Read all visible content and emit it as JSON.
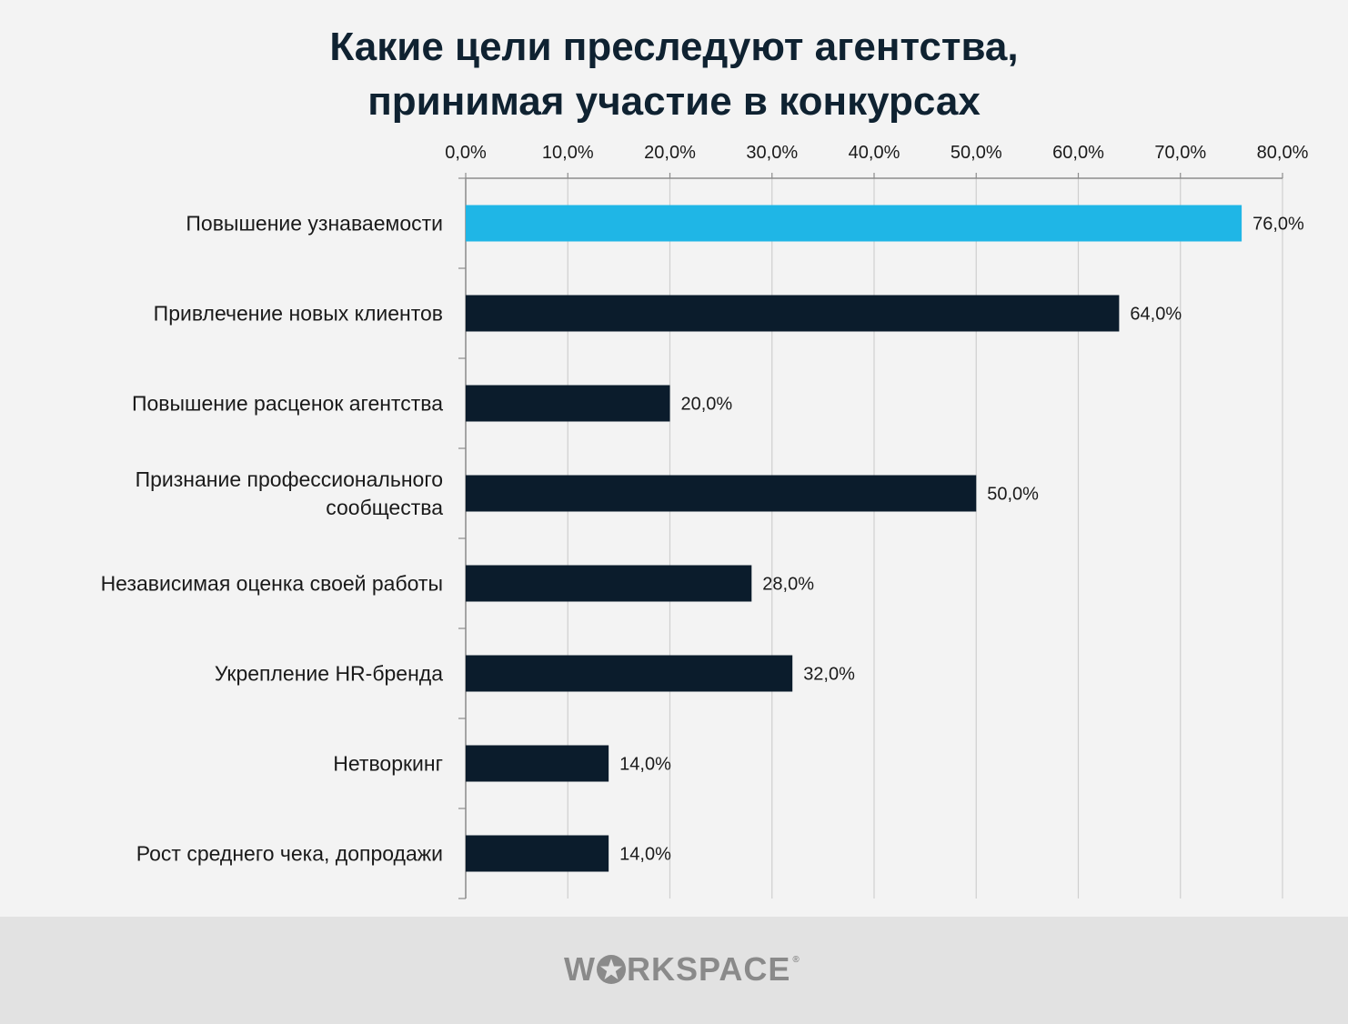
{
  "chart_data": {
    "type": "bar",
    "orientation": "horizontal",
    "title_lines": [
      "Какие цели преследуют агентства,",
      "принимая участие в конкурсах"
    ],
    "categories": [
      "Повышение узнаваемости",
      "Привлечение новых клиентов",
      "Повышение расценок агентства",
      "Признание  профессионального сообщества",
      "Независимая оценка своей работы",
      "Укрепление HR-бренда",
      "Нетворкинг",
      "Рост среднего чека, допродажи"
    ],
    "category_lines": [
      [
        "Повышение узнаваемости"
      ],
      [
        "Привлечение новых клиентов"
      ],
      [
        "Повышение расценок агентства"
      ],
      [
        "Признание  профессионального",
        "сообщества"
      ],
      [
        "Независимая оценка своей работы"
      ],
      [
        "Укрепление HR-бренда"
      ],
      [
        "Нетворкинг"
      ],
      [
        "Рост среднего чека, допродажи"
      ]
    ],
    "values": [
      76,
      64,
      20,
      50,
      28,
      32,
      14,
      14
    ],
    "data_labels": [
      "76,0%",
      "64,0%",
      "20,0%",
      "50,0%",
      "28,0%",
      "32,0%",
      "14,0%",
      "14,0%"
    ],
    "xlim": [
      0,
      80
    ],
    "tick_values": [
      0,
      10,
      20,
      30,
      40,
      50,
      60,
      70,
      80
    ],
    "tick_labels": [
      "0,0%",
      "10,0%",
      "20,0%",
      "30,0%",
      "40,0%",
      "50,0%",
      "60,0%",
      "70,0%",
      "80,0%"
    ],
    "axis_position": "top",
    "grid": true,
    "legend": "none",
    "colors": {
      "highlight": "#1fb6e6",
      "bar": "#0b1c2c",
      "grid": "#cfcfcf",
      "axis": "#8c8c8c",
      "text": "#1a1a1a"
    }
  },
  "footer": {
    "logo_prefix": "W",
    "logo_suffix": "RKSPACE",
    "logo_icon": "star-o-icon",
    "logo_reg": "®"
  }
}
